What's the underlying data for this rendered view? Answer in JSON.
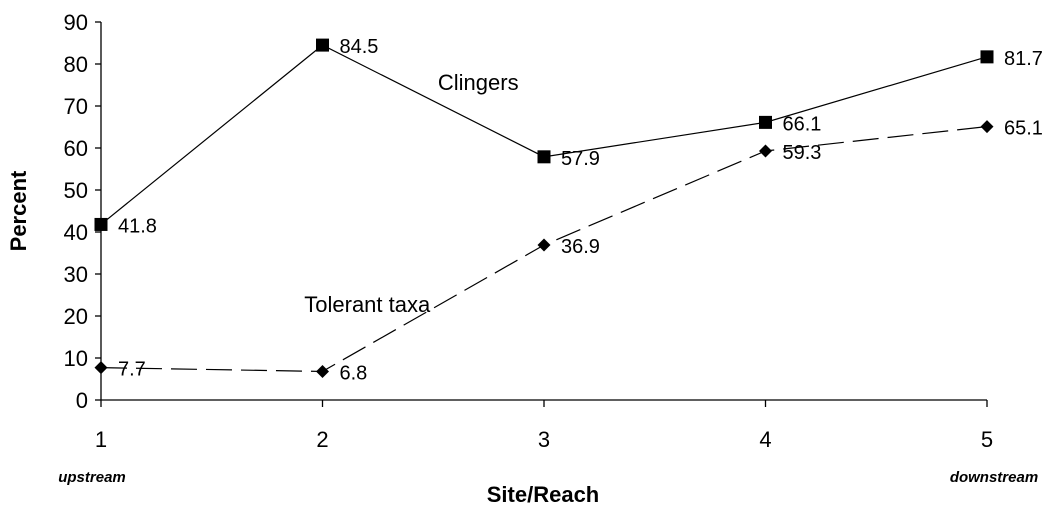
{
  "chart_data": {
    "type": "line",
    "title": "",
    "xlabel": "Site/Reach",
    "ylabel": "Percent",
    "x": [
      1,
      2,
      3,
      4,
      5
    ],
    "x_tick_labels": [
      "1",
      "2",
      "3",
      "4",
      "5"
    ],
    "x_annotations": {
      "first": "upstream",
      "last": "downstream"
    },
    "ylim": [
      0,
      90
    ],
    "y_ticks": [
      0,
      10,
      20,
      30,
      40,
      50,
      60,
      70,
      80,
      90
    ],
    "y_tick_labels": [
      "0",
      "10",
      "20",
      "30",
      "40",
      "50",
      "60",
      "70",
      "80",
      "90"
    ],
    "grid": false,
    "legend": "none",
    "series": [
      {
        "name": "Clingers",
        "values": [
          41.8,
          84.5,
          57.9,
          66.1,
          81.7
        ],
        "value_labels": [
          "41.8",
          "84.5",
          "57.9",
          "66.1",
          "81.7"
        ],
        "marker": "square",
        "line_style": "solid",
        "color": "#000000"
      },
      {
        "name": "Tolerant taxa",
        "values": [
          7.7,
          6.8,
          36.9,
          59.3,
          65.1
        ],
        "value_labels": [
          "7.7",
          "6.8",
          "36.9",
          "59.3",
          "65.1"
        ],
        "marker": "diamond",
        "line_style": "dashed",
        "color": "#000000"
      }
    ]
  }
}
